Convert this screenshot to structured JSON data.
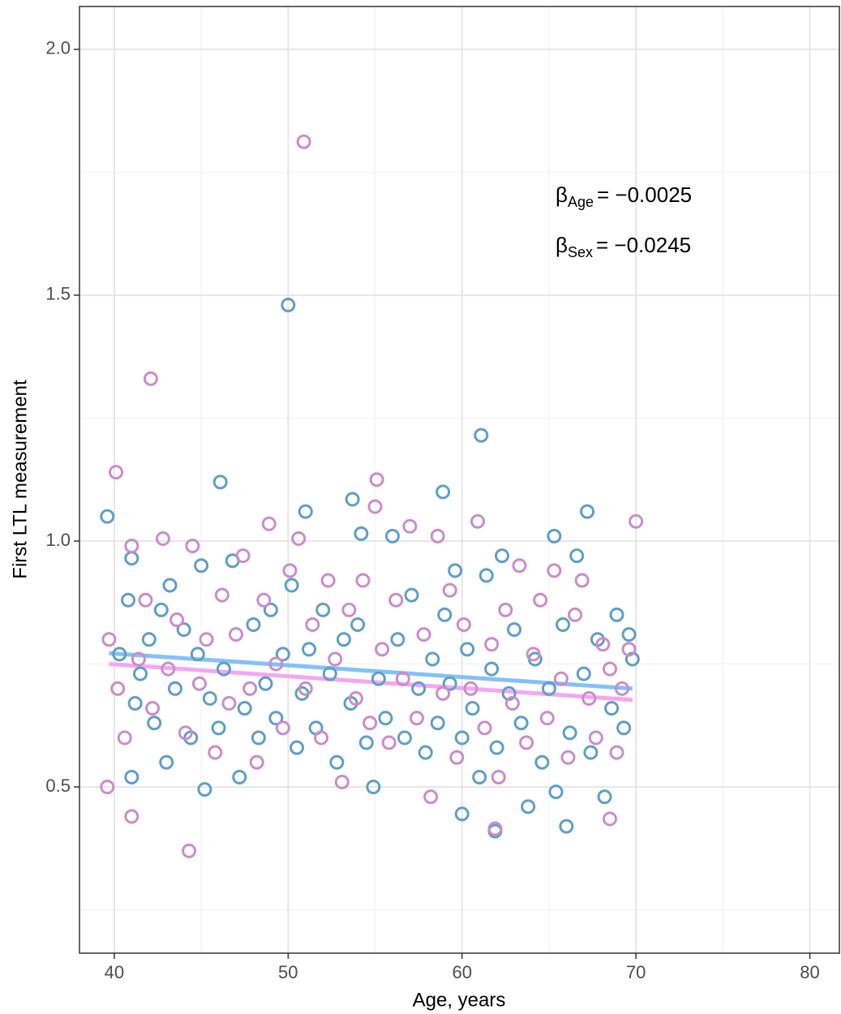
{
  "chart_data": {
    "type": "scatter",
    "x_label": "Age, years",
    "y_label": "First LTL measurement",
    "xlim": [
      38,
      81.7
    ],
    "ylim": [
      0.162,
      2.087
    ],
    "xticks": [
      40,
      50,
      60,
      70,
      80
    ],
    "yticks": [
      0.5,
      1.0,
      1.5,
      2.0
    ],
    "x_minor_ticks": [
      45,
      55,
      65,
      75
    ],
    "y_minor_ticks": [
      0.25,
      0.75,
      1.25,
      1.75
    ],
    "grid": true,
    "series": [
      {
        "color": "#5e9fc9",
        "x": [
          50,
          61.1,
          46.1,
          39.6,
          58.9,
          51,
          53.7,
          67.2,
          66,
          61.9,
          60,
          65.3,
          54.2,
          45.2,
          41,
          40.3,
          40.8,
          41.0,
          41.2,
          41.5,
          42.0,
          42.3,
          42.7,
          43.0,
          43.2,
          43.5,
          44.0,
          44.4,
          44.8,
          45.0,
          45.5,
          46.0,
          46.3,
          46.8,
          47.2,
          47.5,
          48.0,
          48.3,
          48.7,
          49.0,
          49.3,
          49.7,
          50.2,
          50.5,
          50.8,
          51.2,
          51.6,
          52.0,
          52.4,
          52.8,
          53.2,
          53.6,
          54.0,
          54.5,
          54.9,
          55.2,
          55.6,
          56.0,
          56.3,
          56.7,
          57.1,
          57.5,
          57.9,
          58.3,
          58.6,
          59.0,
          59.3,
          59.6,
          60.0,
          60.3,
          60.6,
          61.0,
          61.4,
          61.7,
          62.0,
          62.3,
          62.7,
          63.0,
          63.4,
          63.8,
          64.2,
          64.6,
          65.0,
          65.4,
          65.8,
          66.2,
          66.6,
          67.0,
          67.4,
          67.8,
          68.2,
          68.6,
          68.9,
          69.3,
          69.6,
          69.8
        ],
        "values": [
          1.48,
          1.215,
          1.12,
          1.05,
          1.1,
          1.06,
          1.085,
          1.06,
          0.42,
          0.41,
          0.445,
          1.01,
          1.015,
          0.495,
          0.52,
          0.77,
          0.88,
          0.965,
          0.67,
          0.73,
          0.8,
          0.63,
          0.86,
          0.55,
          0.91,
          0.7,
          0.82,
          0.6,
          0.77,
          0.95,
          0.68,
          0.62,
          0.74,
          0.96,
          0.52,
          0.66,
          0.83,
          0.6,
          0.71,
          0.86,
          0.64,
          0.77,
          0.91,
          0.58,
          0.69,
          0.78,
          0.62,
          0.86,
          0.73,
          0.55,
          0.8,
          0.67,
          0.83,
          0.59,
          0.5,
          0.72,
          0.64,
          1.01,
          0.8,
          0.6,
          0.89,
          0.7,
          0.57,
          0.76,
          0.63,
          0.85,
          0.71,
          0.94,
          0.6,
          0.78,
          0.66,
          0.52,
          0.93,
          0.74,
          0.58,
          0.97,
          0.69,
          0.82,
          0.63,
          0.46,
          0.76,
          0.55,
          0.7,
          0.49,
          0.83,
          0.61,
          0.97,
          0.73,
          0.57,
          0.8,
          0.48,
          0.66,
          0.85,
          0.62,
          0.81,
          0.76
        ]
      },
      {
        "color": "#cc8ccc",
        "x": [
          50.9,
          42.1,
          40.1,
          55.1,
          70,
          44.3,
          39.6,
          41,
          68.5,
          61.9,
          39.7,
          40.2,
          40.6,
          41.0,
          41.4,
          41.8,
          42.2,
          42.8,
          43.1,
          43.6,
          44.1,
          44.5,
          44.9,
          45.3,
          45.8,
          46.2,
          46.6,
          47.0,
          47.4,
          47.8,
          48.2,
          48.6,
          48.9,
          49.3,
          49.7,
          50.1,
          50.6,
          51.0,
          51.4,
          51.9,
          52.3,
          52.7,
          53.1,
          53.5,
          53.9,
          54.3,
          54.7,
          55.0,
          55.4,
          55.8,
          56.2,
          56.6,
          57.0,
          57.4,
          57.8,
          58.2,
          58.6,
          58.9,
          59.3,
          59.7,
          60.1,
          60.5,
          60.9,
          61.3,
          61.7,
          62.1,
          62.5,
          62.9,
          63.3,
          63.7,
          64.1,
          64.5,
          64.9,
          65.3,
          65.7,
          66.1,
          66.5,
          66.9,
          67.3,
          67.7,
          68.1,
          68.5,
          68.9,
          69.2,
          69.6
        ],
        "values": [
          1.812,
          1.33,
          1.14,
          1.125,
          1.04,
          0.37,
          0.5,
          0.44,
          0.435,
          0.415,
          0.8,
          0.7,
          0.6,
          0.99,
          0.76,
          0.88,
          0.66,
          1.005,
          0.74,
          0.84,
          0.61,
          0.99,
          0.71,
          0.8,
          0.57,
          0.89,
          0.67,
          0.81,
          0.97,
          0.7,
          0.55,
          0.88,
          1.035,
          0.75,
          0.62,
          0.94,
          1.005,
          0.7,
          0.83,
          0.6,
          0.92,
          0.76,
          0.51,
          0.86,
          0.68,
          0.92,
          0.63,
          1.07,
          0.78,
          0.59,
          0.88,
          0.72,
          1.03,
          0.64,
          0.81,
          0.48,
          1.01,
          0.69,
          0.9,
          0.56,
          0.83,
          0.7,
          1.04,
          0.62,
          0.79,
          0.52,
          0.86,
          0.67,
          0.95,
          0.59,
          0.77,
          0.88,
          0.64,
          0.94,
          0.72,
          0.56,
          0.85,
          0.92,
          0.68,
          0.6,
          0.79,
          0.74,
          0.57,
          0.7,
          0.78
        ]
      }
    ],
    "fits": [
      {
        "color": "#84c1f7",
        "x": [
          39.7,
          69.8
        ],
        "values": [
          0.772,
          0.7
        ]
      },
      {
        "color": "#f5a6f2",
        "x": [
          39.7,
          69.8
        ],
        "values": [
          0.75,
          0.677
        ]
      }
    ],
    "annotations": [
      {
        "symbol": "β",
        "subscript": "Age",
        "text": "= −0.0025"
      },
      {
        "symbol": "β",
        "subscript": "Sex",
        "text": "= −0.0245"
      }
    ]
  }
}
